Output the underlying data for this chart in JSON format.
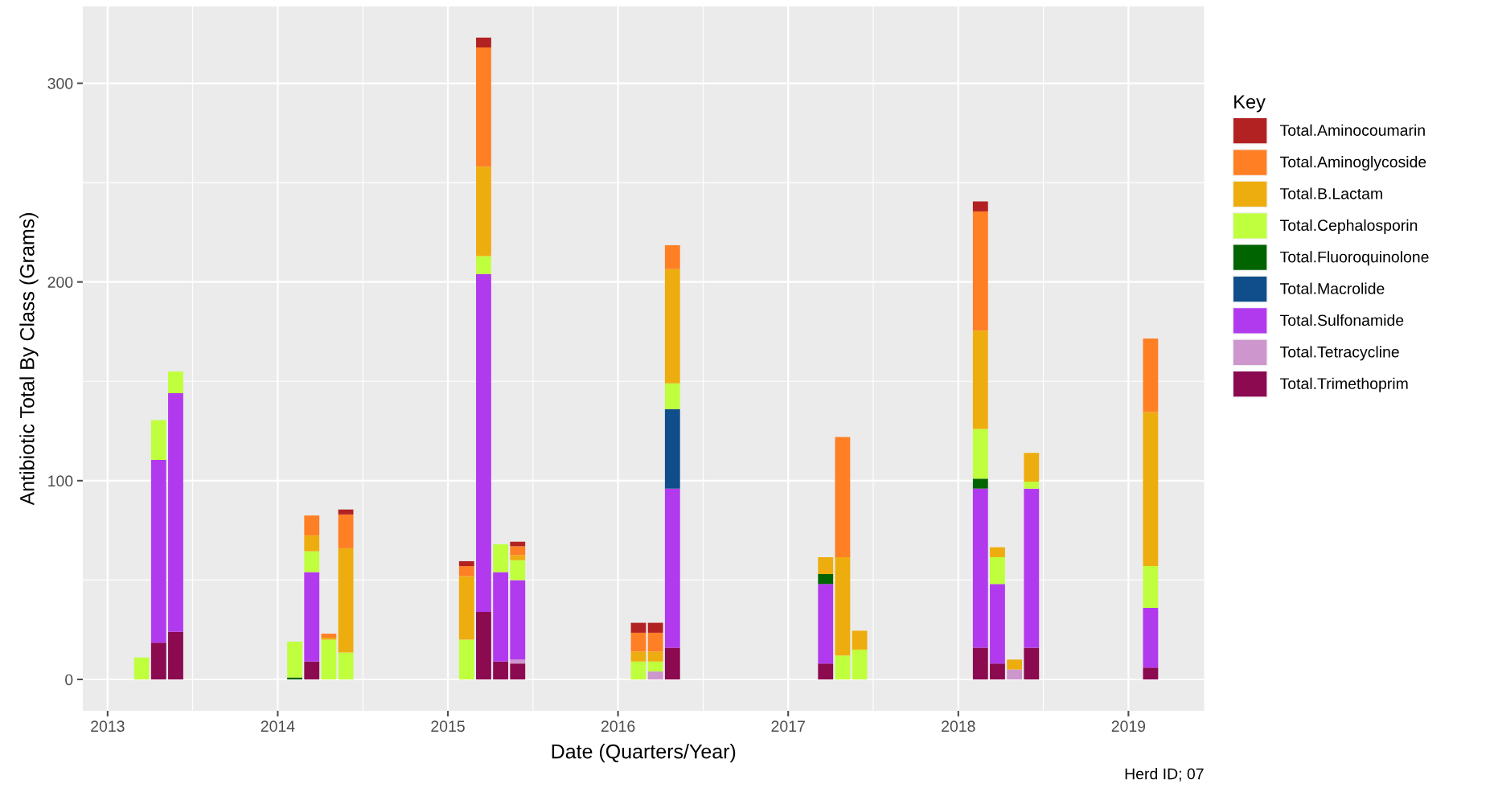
{
  "chart_data": {
    "type": "bar",
    "stacked": true,
    "xlabel": "Date (Quarters/Year)",
    "ylabel": "Antibiotic Total By Class (Grams)",
    "legend_title": "Key",
    "legend": "right",
    "grid": true,
    "annotations": [
      "Herd ID; 07"
    ],
    "x": [
      2013.2,
      2013.3,
      2013.4,
      2014.1,
      2014.2,
      2014.3,
      2014.4,
      2015.11,
      2015.21,
      2015.31,
      2015.41,
      2016.12,
      2016.22,
      2016.32,
      2017.22,
      2017.32,
      2017.42,
      2018.13,
      2018.23,
      2018.33,
      2018.43,
      2019.13
    ],
    "xlim": [
      2012.854,
      2019.445
    ],
    "xticks": [
      2013,
      2014,
      2015,
      2016,
      2017,
      2018,
      2019
    ],
    "ylim": [
      -15.8,
      338.7
    ],
    "yticks": [
      0,
      100,
      200,
      300
    ],
    "series": [
      {
        "name": "Total.Trimethoprim",
        "color": "#8b0a50",
        "values": [
          null,
          18.5,
          24,
          null,
          9,
          null,
          null,
          null,
          34,
          9,
          8,
          null,
          null,
          16,
          8,
          null,
          null,
          16,
          8,
          null,
          16,
          6
        ]
      },
      {
        "name": "Total.Tetracycline",
        "color": "#cd96cd",
        "values": [
          null,
          null,
          null,
          null,
          null,
          null,
          null,
          null,
          null,
          null,
          2,
          null,
          4,
          null,
          null,
          null,
          null,
          null,
          null,
          5,
          null,
          null
        ]
      },
      {
        "name": "Total.Sulfonamide",
        "color": "#b23aee",
        "values": [
          null,
          92,
          120,
          null,
          45,
          null,
          null,
          null,
          170,
          45,
          40,
          null,
          null,
          80,
          40,
          null,
          null,
          80,
          40,
          null,
          80,
          30
        ]
      },
      {
        "name": "Total.Macrolide",
        "color": "#104e8b",
        "values": [
          null,
          null,
          null,
          null,
          null,
          null,
          null,
          null,
          null,
          null,
          null,
          null,
          null,
          40,
          null,
          null,
          null,
          null,
          null,
          null,
          null,
          null
        ]
      },
      {
        "name": "Total.Fluoroquinolone",
        "color": "#006400",
        "values": [
          null,
          null,
          null,
          1,
          null,
          null,
          null,
          null,
          null,
          null,
          null,
          null,
          null,
          null,
          5,
          null,
          null,
          5,
          null,
          null,
          null,
          null
        ]
      },
      {
        "name": "Total.Cephalosporin",
        "color": "#c0ff3e",
        "values": [
          11,
          20,
          11,
          18,
          10.5,
          20,
          13.5,
          20,
          9,
          14,
          10,
          9,
          5,
          13,
          null,
          12,
          15,
          25,
          13.5,
          null,
          3.5,
          21
        ]
      },
      {
        "name": "Total.B.Lactam",
        "color": "#eead0e",
        "values": [
          null,
          null,
          null,
          null,
          8,
          1,
          52.5,
          32,
          45,
          null,
          2.5,
          5,
          5,
          57.5,
          8.5,
          49.5,
          9.5,
          49.5,
          5,
          5,
          14.5,
          77.5
        ]
      },
      {
        "name": "Total.Aminoglycoside",
        "color": "#ff7f24",
        "values": [
          null,
          null,
          null,
          null,
          10,
          2,
          17,
          5,
          60,
          null,
          4.5,
          9.5,
          9.5,
          12,
          null,
          60.5,
          null,
          60,
          null,
          null,
          null,
          37
        ]
      },
      {
        "name": "Total.Aminocoumarin",
        "color": "#b22222",
        "values": [
          null,
          null,
          null,
          null,
          null,
          null,
          2.5,
          2.5,
          5,
          null,
          2.3,
          5,
          5,
          null,
          null,
          null,
          null,
          5,
          null,
          null,
          null,
          null
        ]
      }
    ]
  }
}
